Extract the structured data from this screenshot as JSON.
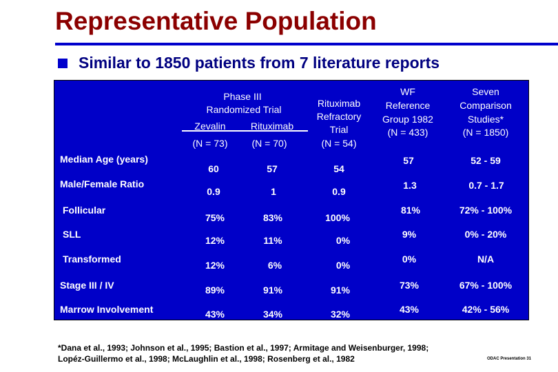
{
  "title": "Representative Population",
  "bullet": "Similar to 1850 patients from 7 literature reports",
  "table": {
    "headers": {
      "phase3_title": "Phase III",
      "phase3_subtitle": "Randomized Trial",
      "zevalin": "Zevalin",
      "rituximab": "Rituximab",
      "zevalin_n": "(N = 73)",
      "rituximab_n": "(N = 70)",
      "refractory_1": "Rituximab",
      "refractory_2": "Refractory",
      "refractory_3": "Trial",
      "refractory_n": "(N = 54)",
      "wf_1": "WF",
      "wf_2": "Reference",
      "wf_3": "Group 1982",
      "wf_n": "(N = 433)",
      "seven_1": "Seven",
      "seven_2": "Comparison",
      "seven_3": "Studies*",
      "seven_n": "(N = 1850)"
    },
    "rows": [
      {
        "label": "Median Age (years)",
        "zevalin": "60",
        "rituximab": "57",
        "refractory": "54",
        "wf": "57",
        "seven": "52 - 59"
      },
      {
        "label": "Male/Female Ratio",
        "zevalin": "0.9",
        "rituximab": "1",
        "refractory": "0.9",
        "wf": "1.3",
        "seven": "0.7 - 1.7"
      },
      {
        "label": "Follicular",
        "zevalin": "75%",
        "rituximab": "83%",
        "refractory": "100%",
        "wf": "81%",
        "seven": "72% - 100%"
      },
      {
        "label": "SLL",
        "zevalin": "12%",
        "rituximab": "11%",
        "refractory": "0%",
        "wf": "9%",
        "seven": "0% - 20%"
      },
      {
        "label": "Transformed",
        "zevalin": "12%",
        "rituximab": "6%",
        "refractory": "0%",
        "wf": "0%",
        "seven": "N/A"
      },
      {
        "label": "Stage III / IV",
        "zevalin": "89%",
        "rituximab": "91%",
        "refractory": "91%",
        "wf": "73%",
        "seven": "67% - 100%"
      },
      {
        "label": "Marrow Involvement",
        "zevalin": "43%",
        "rituximab": "34%",
        "refractory": "32%",
        "wf": "43%",
        "seven": "42% - 56%"
      }
    ]
  },
  "footnote_line1": "*Dana et al., 1993; Johnson et al., 1995; Bastion et al., 1997; Armitage and  Weisenburger, 1998;",
  "footnote_line2": "Lopéz-Guillermo et al., 1998; McLaughlin et al., 1998; Rosenberg et al., 1982",
  "slide_label": "ODAC Presentation 31",
  "colors": {
    "title": "#8b0000",
    "accent": "#0000cc",
    "panel": "#0000c8",
    "text_on_panel": "#ffffff"
  }
}
